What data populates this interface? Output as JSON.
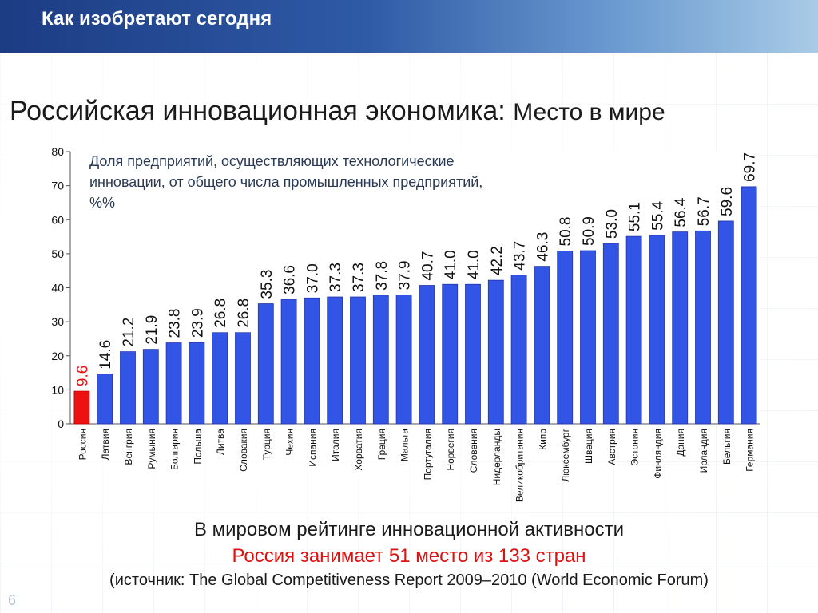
{
  "header": {
    "title": "Как изобретают сегодня"
  },
  "slide": {
    "title_main": "Российская инновационная экономика:",
    "title_sub": "Место в мире",
    "footer_line1": "В мировом рейтинге инновационной активности",
    "footer_line2": "Россия занимает 51 место из 133 стран",
    "footer_line3": "(источник: The Global Competitiveness Report 2009–2010 (World Economic Forum)",
    "slide_number": "6"
  },
  "chart_data": {
    "type": "bar",
    "title_lines": [
      "Доля предприятий, осуществляющих технологические",
      "инновации, от общего числа промышленных предприятий,",
      "%%"
    ],
    "categories": [
      "Россия",
      "Латвия",
      "Венгрия",
      "Румыния",
      "Болгария",
      "Польша",
      "Литва",
      "Словакия",
      "Турция",
      "Чехия",
      "Испания",
      "Италия",
      "Хорватия",
      "Греция",
      "Мальта",
      "Португалия",
      "Норвегия",
      "Словения",
      "Нидерланды",
      "Великобритания",
      "Кипр",
      "Люксембург",
      "Швеция",
      "Австрия",
      "Эстония",
      "Финляндия",
      "Дания",
      "Ирландия",
      "Бельгия",
      "Германия"
    ],
    "values": [
      9.6,
      14.6,
      21.2,
      21.9,
      23.8,
      23.9,
      26.8,
      26.8,
      35.3,
      36.6,
      37.0,
      37.3,
      37.3,
      37.8,
      37.9,
      40.7,
      41.0,
      41.0,
      42.2,
      43.7,
      46.3,
      50.8,
      50.9,
      53.0,
      55.1,
      55.4,
      56.4,
      56.7,
      59.6,
      69.7
    ],
    "value_labels": [
      "9.6",
      "14.6",
      "21.2",
      "21.9",
      "23.8",
      "23.9",
      "26.8",
      "26.8",
      "35.3",
      "36.6",
      "37.0",
      "37.3",
      "37.3",
      "37.8",
      "37.9",
      "40.7",
      "41.0",
      "41.0",
      "42.2",
      "43.7",
      "46.3",
      "50.8",
      "50.9",
      "53.0",
      "55.1",
      "55.4",
      "56.4",
      "56.7",
      "59.6",
      "69.7"
    ],
    "ylim": [
      0,
      80
    ],
    "yticks": [
      "0",
      "10",
      "20",
      "30",
      "40",
      "50",
      "60",
      "70",
      "80"
    ],
    "colors": {
      "default": "#3355e6",
      "highlight": "#ee1111",
      "highlight_index": 0
    }
  }
}
